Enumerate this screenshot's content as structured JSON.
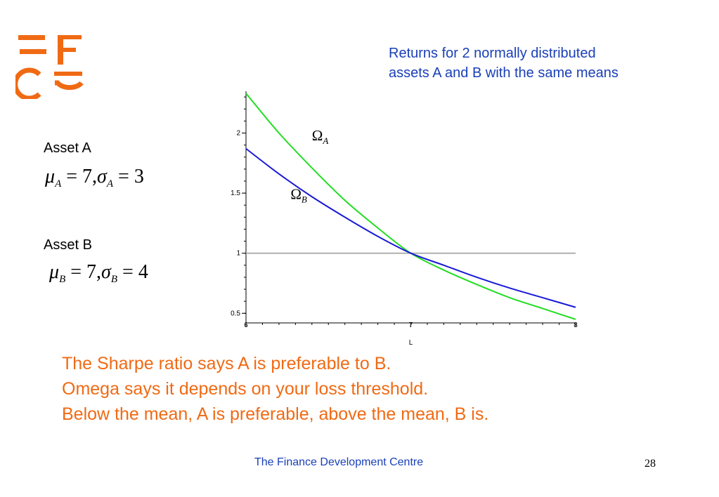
{
  "title_lines": [
    "Returns for  2 normally distributed",
    "assets A and B with the same means"
  ],
  "assets": [
    {
      "label": "Asset A",
      "symbol_mu": "μ",
      "symbol_sigma": "σ",
      "sub": "A",
      "mu": "7",
      "sigma": "3"
    },
    {
      "label": "Asset B",
      "symbol_mu": "μ",
      "symbol_sigma": "σ",
      "sub": "B",
      "mu": "7",
      "sigma": "4"
    }
  ],
  "conclusion": [
    "The Sharpe ratio says A is preferable to B.",
    "Omega says it depends on your loss threshold.",
    "Below the mean, A is preferable, above the mean, B is."
  ],
  "footer": {
    "organization": "The Finance Development Centre",
    "page_number": "28"
  },
  "colors": {
    "title": "#1a3fb8",
    "conclusion": "#f06a14",
    "logo": "#f06a14",
    "series_a": "#22dd22",
    "series_b": "#1a1ad6",
    "reference": "#b0b0b0"
  },
  "chart_data": {
    "type": "line",
    "xlabel": "L",
    "ylabel": "",
    "xlim": [
      6,
      8
    ],
    "ylim": [
      0.42,
      2.33
    ],
    "x_ticks": [
      {
        "value": 6,
        "label": "6"
      },
      {
        "value": 7,
        "label": "7"
      },
      {
        "value": 8,
        "label": "8"
      }
    ],
    "y_ticks": [
      {
        "value": 0.5,
        "label": "0.5"
      },
      {
        "value": 1,
        "label": "1"
      },
      {
        "value": 1.5,
        "label": "1.5"
      },
      {
        "value": 2,
        "label": "2"
      }
    ],
    "reference_line": {
      "y": 1
    },
    "series": [
      {
        "name": "Ω",
        "sub": "A",
        "color": "#22dd22",
        "label_at": {
          "x": 6.4,
          "y": 1.94
        },
        "x": [
          6,
          6.2,
          6.4,
          6.6,
          6.8,
          7,
          7.2,
          7.4,
          7.6,
          7.8,
          8
        ],
        "y": [
          2.33,
          2.0,
          1.71,
          1.44,
          1.21,
          1.0,
          0.86,
          0.74,
          0.63,
          0.54,
          0.45
        ]
      },
      {
        "name": "Ω",
        "sub": "B",
        "color": "#1a1ad6",
        "label_at": {
          "x": 6.27,
          "y": 1.45
        },
        "x": [
          6,
          6.2,
          6.4,
          6.6,
          6.8,
          7,
          7.2,
          7.4,
          7.6,
          7.8,
          8
        ],
        "y": [
          1.87,
          1.66,
          1.47,
          1.3,
          1.14,
          1.0,
          0.9,
          0.8,
          0.71,
          0.63,
          0.55
        ]
      }
    ]
  }
}
